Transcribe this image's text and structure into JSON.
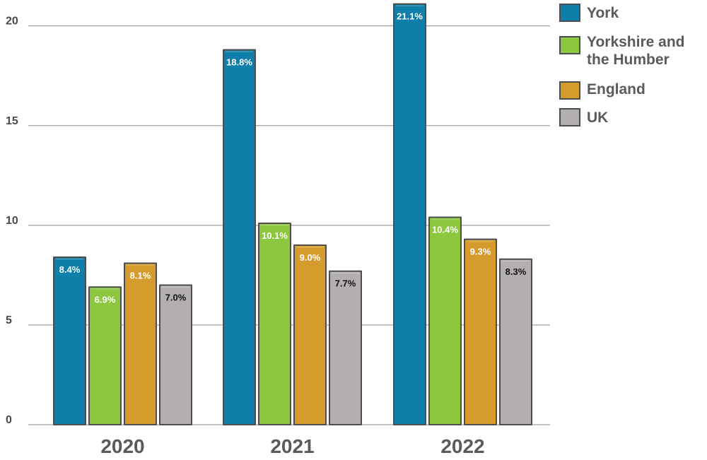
{
  "chart_data": {
    "type": "bar",
    "categories": [
      "2020",
      "2021",
      "2022"
    ],
    "series": [
      {
        "name": "York",
        "color": "#0e7fa8",
        "values": [
          8.4,
          18.8,
          21.1
        ],
        "labels": [
          "8.4%",
          "18.8%",
          "21.1%"
        ],
        "label_color": "#ffffff"
      },
      {
        "name": "Yorkshire and the Humber",
        "name_lines": [
          "Yorkshire and",
          "the Humber"
        ],
        "color": "#8dc63f",
        "values": [
          6.9,
          10.1,
          10.4
        ],
        "labels": [
          "6.9%",
          "10.1%",
          "10.4%"
        ],
        "label_color": "#ffffff"
      },
      {
        "name": "England",
        "color": "#d59b2d",
        "values": [
          8.1,
          9.0,
          9.3
        ],
        "labels": [
          "8.1%",
          "9.0%",
          "9.3%"
        ],
        "label_color": "#ffffff"
      },
      {
        "name": "UK",
        "color": "#b3afb0",
        "values": [
          7.0,
          7.7,
          8.3
        ],
        "labels": [
          "7.0%",
          "7.7%",
          "8.3%"
        ],
        "label_color": "#111111"
      }
    ],
    "yticks": [
      0,
      5,
      10,
      15,
      20
    ],
    "ylim": [
      0,
      21.3
    ],
    "grid": true,
    "legend_position": "top-right"
  }
}
